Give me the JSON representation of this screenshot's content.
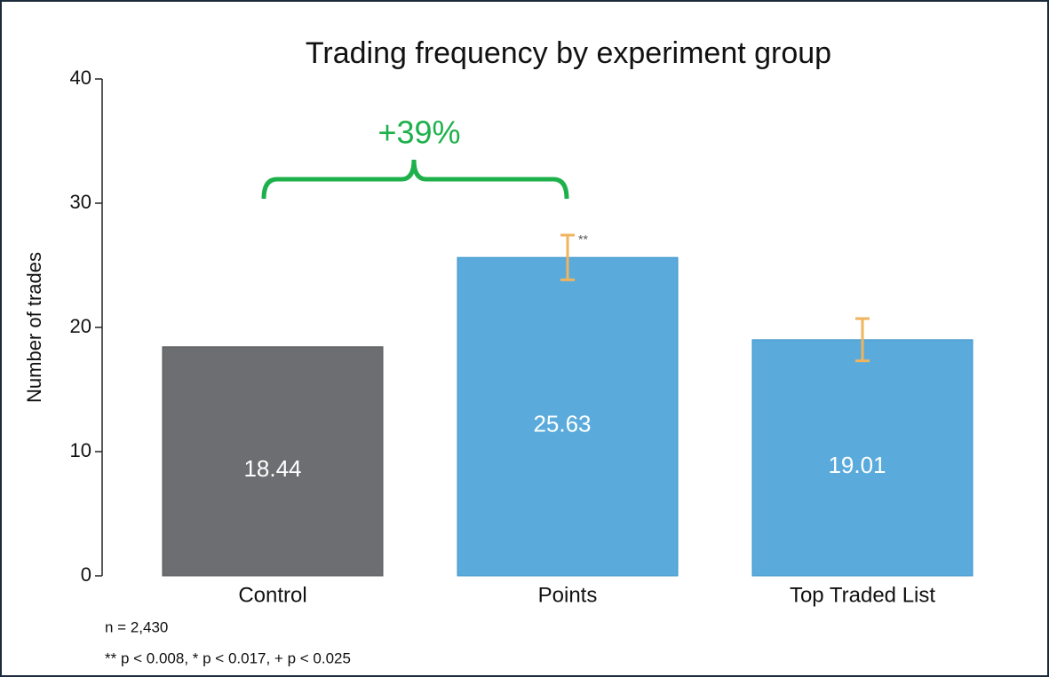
{
  "chart_data": {
    "type": "bar",
    "title": "Trading frequency by experiment group",
    "y_label": "Number of trades",
    "categories": [
      "Control",
      "Points",
      "Top Traded List"
    ],
    "values": [
      18.44,
      25.63,
      19.01
    ],
    "errors": [
      null,
      1.8,
      1.7
    ],
    "colors": [
      "#6d6e71",
      "#5aabdc",
      "#5aabdc"
    ],
    "error_color": "#f0b35e",
    "ylim": [
      0,
      40
    ],
    "yticks": [
      0,
      10,
      20,
      30,
      40
    ],
    "grid": false,
    "annotations": {
      "increase": "+39%",
      "significance": "**"
    },
    "notes": [
      "n = 2,430",
      "** p < 0.008, * p < 0.017, + p < 0.025"
    ]
  }
}
